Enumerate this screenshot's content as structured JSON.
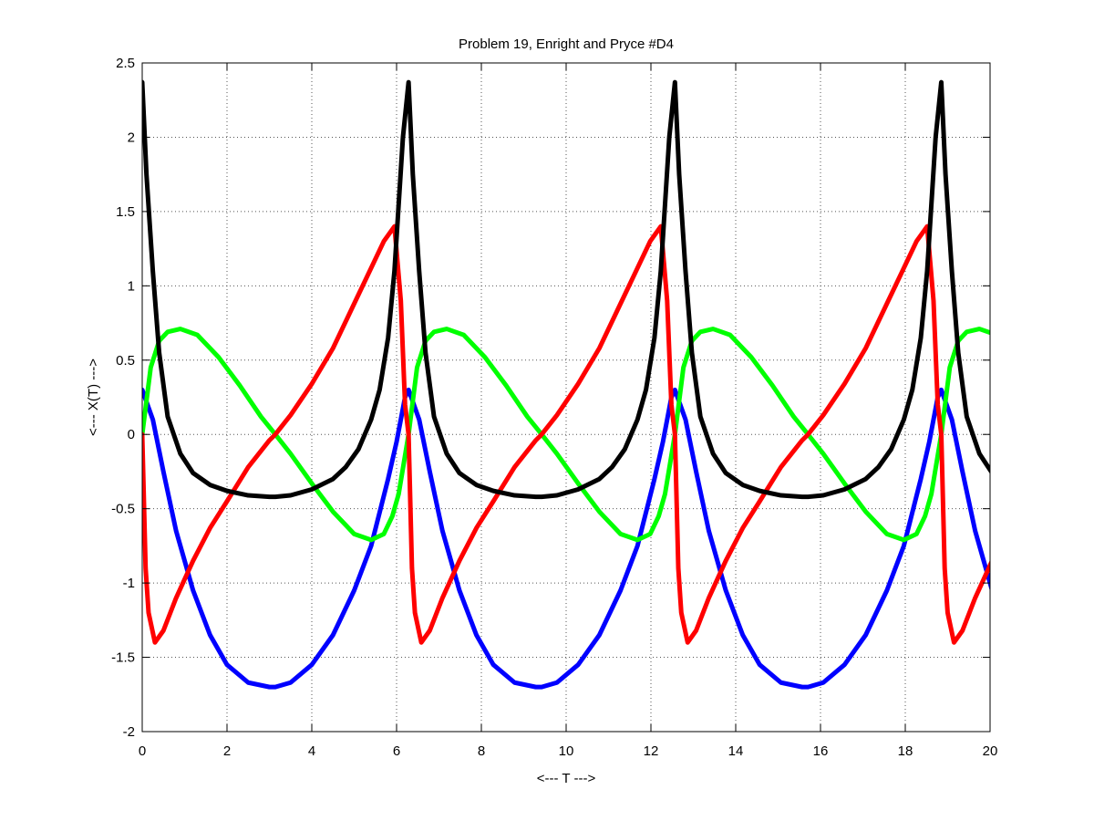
{
  "chart_data": {
    "type": "line",
    "title": "Problem 19, Enright and Pryce #D4",
    "xlabel": "<--- T --->",
    "ylabel": "<--- X(T) --->",
    "xlim": [
      0,
      20
    ],
    "ylim": [
      -2,
      2.5
    ],
    "xticks": [
      0,
      2,
      4,
      6,
      8,
      10,
      12,
      14,
      16,
      18,
      20
    ],
    "yticks": [
      -2,
      -1.5,
      -1,
      -0.5,
      0,
      0.5,
      1,
      1.5,
      2,
      2.5
    ],
    "xtick_labels": [
      "0",
      "2",
      "4",
      "6",
      "8",
      "10",
      "12",
      "14",
      "16",
      "18",
      "20"
    ],
    "ytick_labels": [
      "-2",
      "-1.5",
      "-1",
      "-0.5",
      "0",
      "0.5",
      "1",
      "1.5",
      "2",
      "2.5"
    ],
    "grid": true,
    "period": 6.283,
    "series": [
      {
        "color": "#0000ff",
        "x": [
          0.0,
          0.25,
          0.5,
          0.8,
          1.2,
          1.6,
          2.0,
          2.5,
          3.0,
          3.14,
          3.5,
          4.0,
          4.5,
          5.0,
          5.4,
          5.8,
          6.0,
          6.2,
          6.283
        ],
        "y": [
          0.3,
          0.1,
          -0.25,
          -0.65,
          -1.05,
          -1.35,
          -1.55,
          -1.67,
          -1.7,
          -1.7,
          -1.67,
          -1.55,
          -1.35,
          -1.05,
          -0.75,
          -0.3,
          -0.05,
          0.25,
          0.3
        ]
      },
      {
        "color": "#00ff00",
        "x": [
          0.0,
          0.2,
          0.4,
          0.6,
          0.9,
          1.3,
          1.8,
          2.3,
          2.8,
          3.14,
          3.5,
          4.0,
          4.5,
          5.0,
          5.4,
          5.7,
          5.9,
          6.05,
          6.283
        ],
        "y": [
          0.0,
          0.45,
          0.63,
          0.69,
          0.71,
          0.67,
          0.52,
          0.33,
          0.12,
          0.0,
          -0.13,
          -0.33,
          -0.52,
          -0.67,
          -0.71,
          -0.67,
          -0.55,
          -0.4,
          0.0
        ]
      },
      {
        "color": "#ff0000",
        "x": [
          0.0,
          0.08,
          0.15,
          0.3,
          0.5,
          0.8,
          1.2,
          1.6,
          2.0,
          2.5,
          3.0,
          3.14,
          3.5,
          4.0,
          4.5,
          5.0,
          5.4,
          5.7,
          5.95,
          6.1,
          6.2,
          6.283
        ],
        "y": [
          0.0,
          -0.9,
          -1.2,
          -1.4,
          -1.32,
          -1.1,
          -0.85,
          -0.63,
          -0.45,
          -0.22,
          -0.04,
          0.0,
          0.13,
          0.34,
          0.58,
          0.88,
          1.12,
          1.3,
          1.4,
          0.9,
          0.2,
          0.0
        ]
      },
      {
        "color": "#000000",
        "x": [
          0.0,
          0.1,
          0.25,
          0.4,
          0.6,
          0.9,
          1.2,
          1.6,
          2.0,
          2.5,
          3.0,
          3.14,
          3.5,
          4.0,
          4.5,
          4.8,
          5.1,
          5.4,
          5.6,
          5.8,
          5.95,
          6.05,
          6.15,
          6.283
        ],
        "y": [
          2.37,
          1.75,
          1.1,
          0.55,
          0.12,
          -0.13,
          -0.26,
          -0.34,
          -0.38,
          -0.41,
          -0.42,
          -0.42,
          -0.41,
          -0.37,
          -0.3,
          -0.22,
          -0.1,
          0.1,
          0.3,
          0.65,
          1.1,
          1.55,
          2.0,
          2.37
        ]
      }
    ]
  }
}
